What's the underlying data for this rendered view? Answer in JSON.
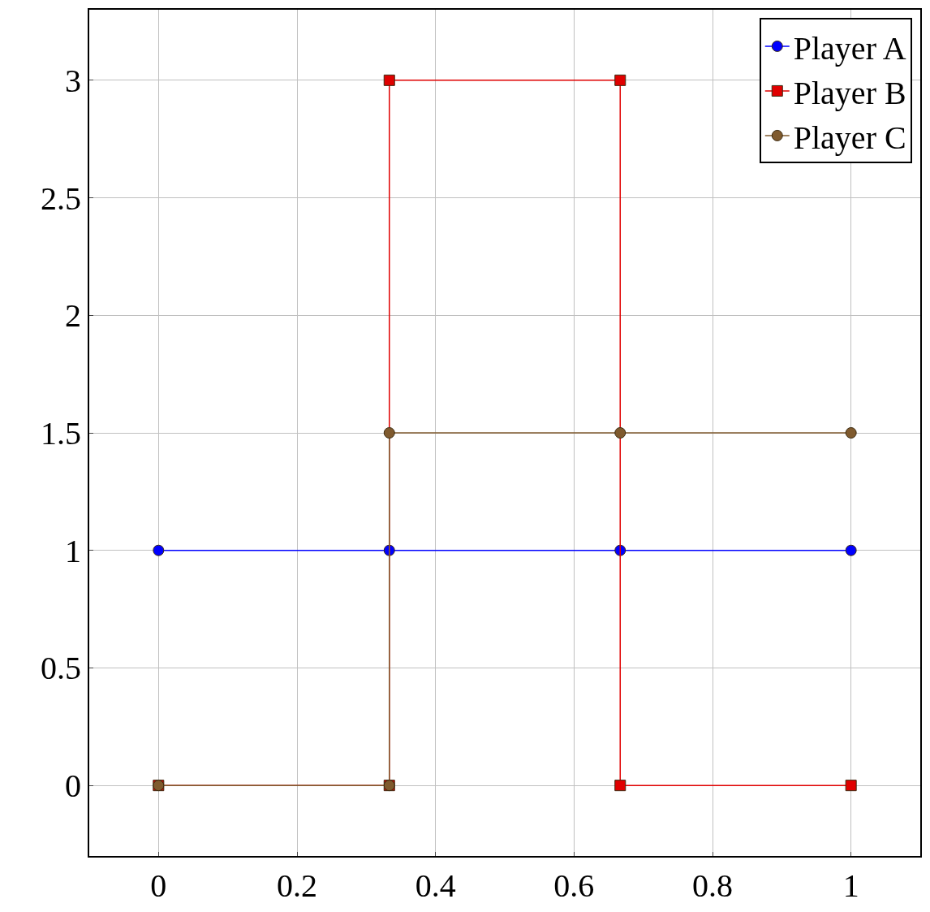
{
  "chart_data": {
    "type": "line",
    "xlim": [
      -0.1,
      1.1
    ],
    "ylim": [
      -0.3,
      3.3
    ],
    "xticks": [
      0,
      0.2,
      0.4,
      0.6,
      0.8,
      1
    ],
    "yticks": [
      0,
      0.5,
      1,
      1.5,
      2,
      2.5,
      3
    ],
    "grid": true,
    "legend": "top right",
    "series": [
      {
        "name": "Player A",
        "color": "#0000ff",
        "marker": "circle",
        "x": [
          0,
          0.3333,
          0.6667,
          1
        ],
        "values": [
          1,
          1,
          1,
          1
        ]
      },
      {
        "name": "Player B",
        "color": "#e00000",
        "marker": "square",
        "x": [
          0,
          0.3333,
          0.3333,
          0.6667,
          0.6667,
          1
        ],
        "values": [
          0,
          0,
          3,
          3,
          0,
          0
        ]
      },
      {
        "name": "Player C",
        "color": "#7f5a2e",
        "marker": "circle",
        "x": [
          0,
          0.3333,
          0.3333,
          0.6667,
          1
        ],
        "values": [
          0,
          0,
          1.5,
          1.5,
          1.5
        ]
      }
    ]
  }
}
